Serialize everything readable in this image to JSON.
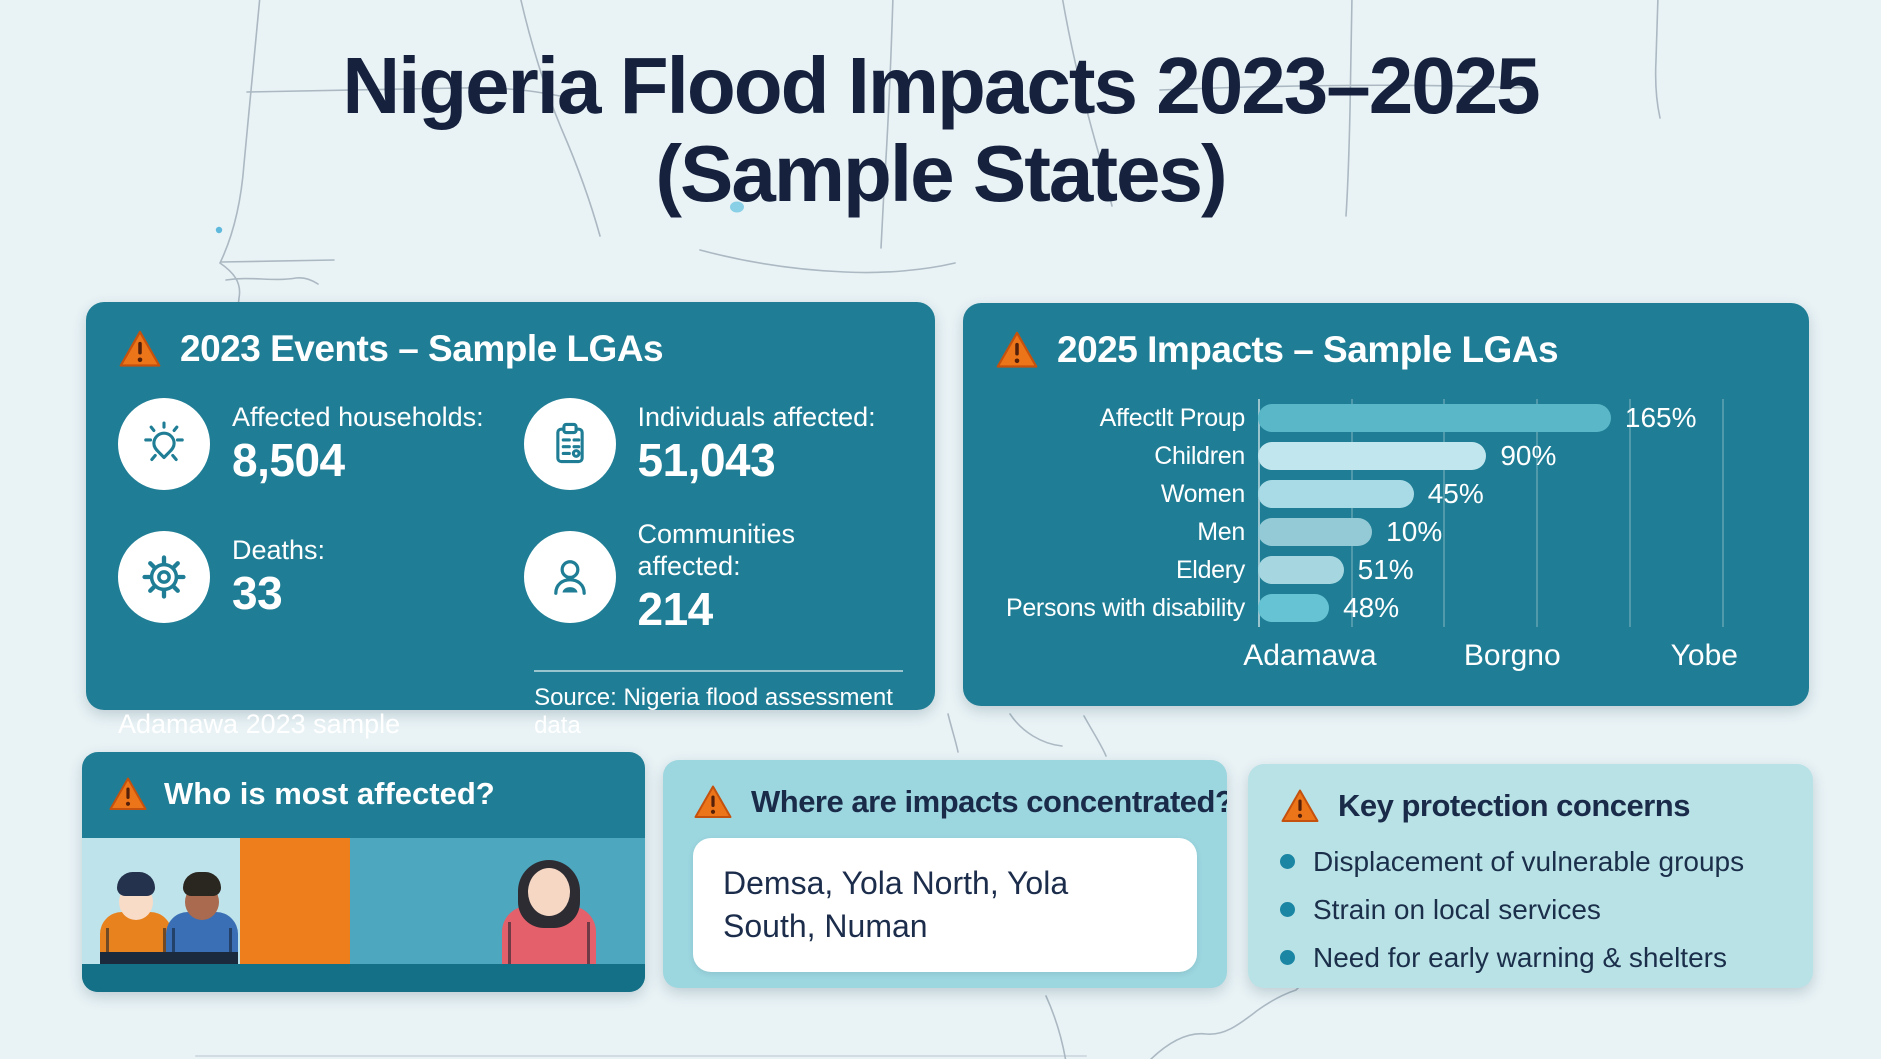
{
  "title": {
    "line1": "Nigeria Flood Impacts 2023–2025",
    "line2": "(Sample States)"
  },
  "colors": {
    "page_background": "#e9f3f6",
    "panel_teal": "#1f7e95",
    "panel_light_blue": "#9cd6df",
    "panel_lighter_blue": "#b9e2e7",
    "warning_orange": "#ed7519",
    "title_navy": "#16213e",
    "accent_orange_block": "#ee7e1c"
  },
  "events_panel": {
    "header": "2023 Events – Sample LGAs",
    "stats": [
      {
        "icon": "idea-icon",
        "label": "Affected households:",
        "value": "8,504"
      },
      {
        "icon": "clipboard-icon",
        "label": "Individuals affected:",
        "value": "51,043"
      },
      {
        "icon": "gear-icon",
        "label": "Deaths:",
        "value": "33"
      },
      {
        "icon": "person-icon",
        "label": "Communities affected:",
        "value": "214"
      }
    ],
    "footnote": "Adamawa 2023 sample",
    "source": "Source: Nigeria flood assessment data"
  },
  "impacts_panel": {
    "header": "2025 Impacts – Sample LGAs",
    "chart_data": {
      "type": "bar",
      "orientation": "horizontal",
      "title": "",
      "xlabel": "",
      "ylabel": "",
      "categories": [
        "Affectlt Proup",
        "Children",
        "Women",
        "Men",
        "Eldery",
        "Persons with disability"
      ],
      "values": [
        165,
        90,
        45,
        10,
        51,
        48
      ],
      "value_labels": [
        "165%",
        "90%",
        "45%",
        "10%",
        "51%",
        "48%"
      ],
      "x_axis_labels": [
        "Adamawa",
        "Borgno",
        "Yobe"
      ],
      "grid": true,
      "bar_length_pct": [
        68,
        44,
        30,
        22,
        16.5,
        13.7
      ],
      "bar_colors": [
        "#59b7c8",
        "#c2e6ee",
        "#a9dbe6",
        "#94c9d6",
        "#a6d7e1",
        "#65c3d3"
      ],
      "gridline_pct": [
        0,
        18,
        36,
        54,
        72,
        90
      ],
      "x_label_pos_pct": [
        10,
        49,
        86
      ]
    }
  },
  "who_panel": {
    "header": "Who is most affected?"
  },
  "where_panel": {
    "header": "Where are impacts concentrated?",
    "box_text": "Demsa, Yola North, Yola South, Numan"
  },
  "concerns_panel": {
    "header": "Key protection concerns",
    "bullets": [
      "Displacement of vulnerable groups",
      "Strain on local services",
      "Need for early warning & shelters"
    ]
  }
}
